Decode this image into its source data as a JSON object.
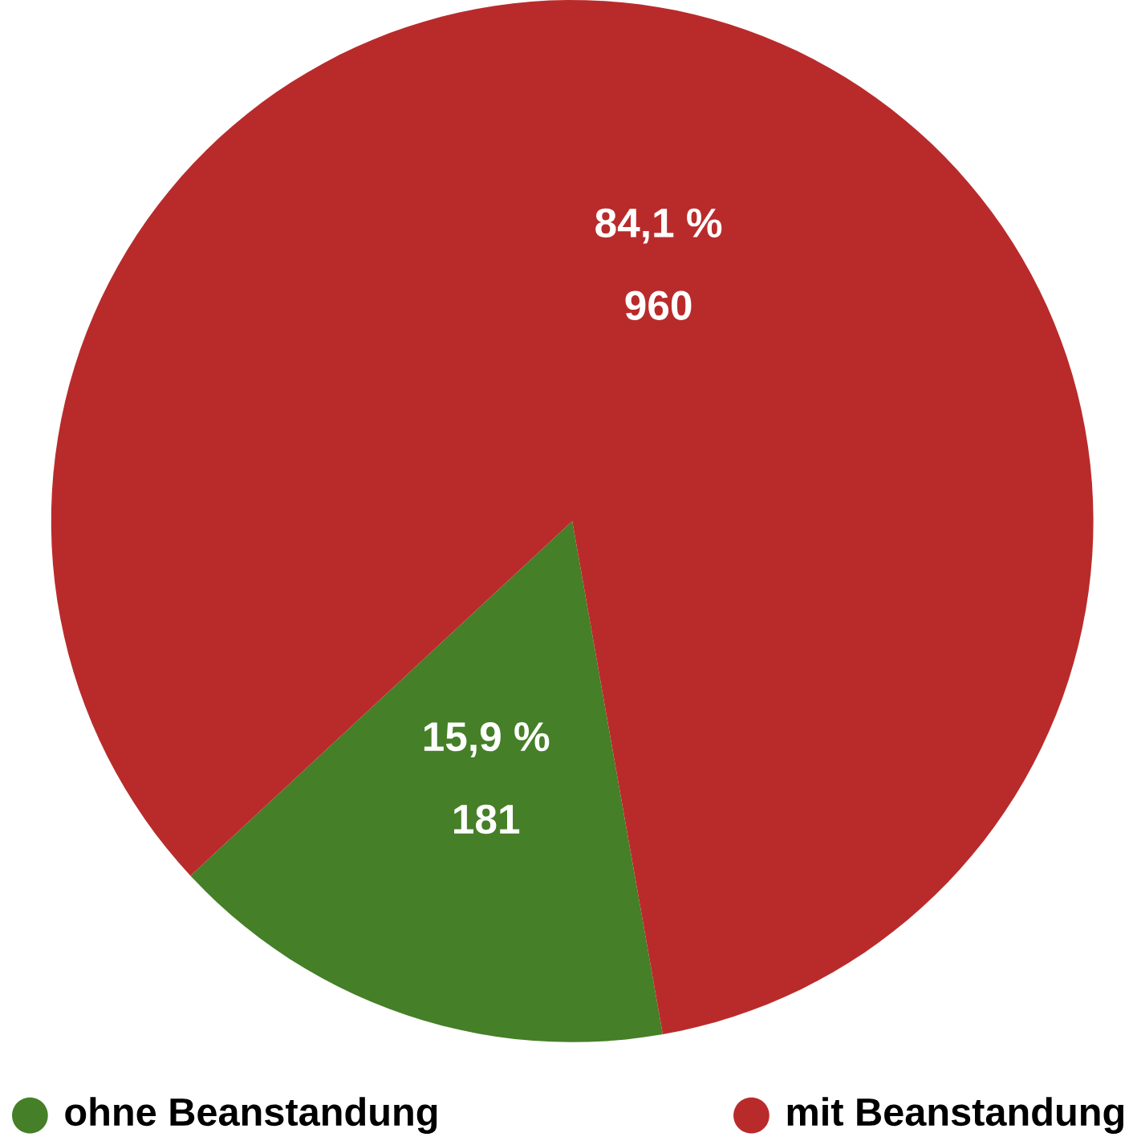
{
  "chart_data": {
    "type": "pie",
    "categories": [
      "ohne Beanstandung",
      "mit Beanstandung"
    ],
    "values": [
      181,
      960
    ],
    "colors": [
      "#457f27",
      "#b92b2b"
    ],
    "data_labels": true,
    "annotations": [
      "15,9 %",
      "84,1 %"
    ],
    "legend": "bottom"
  }
}
